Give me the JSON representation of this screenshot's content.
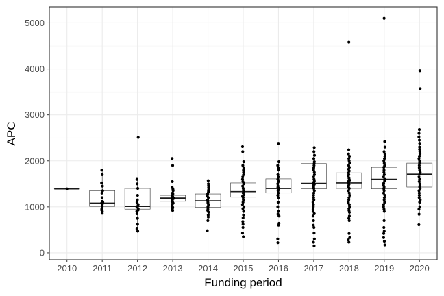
{
  "chart_data": {
    "type": "box",
    "xlabel": "Funding period",
    "ylabel": "APC",
    "ylim": [
      -150,
      5350
    ],
    "yticks": [
      0,
      1000,
      2000,
      3000,
      4000,
      5000
    ],
    "grid": true,
    "categories": [
      "2010",
      "2011",
      "2012",
      "2013",
      "2014",
      "2015",
      "2016",
      "2017",
      "2018",
      "2019",
      "2020"
    ],
    "boxes": [
      {
        "q1": 1390,
        "median": 1390,
        "q3": 1390,
        "whisker_low": 1390,
        "whisker_high": 1390
      },
      {
        "q1": 1010,
        "median": 1080,
        "q3": 1350,
        "whisker_low": 860,
        "whisker_high": 1800
      },
      {
        "q1": 950,
        "median": 1010,
        "q3": 1400,
        "whisker_low": 470,
        "whisker_high": 1600
      },
      {
        "q1": 1120,
        "median": 1190,
        "q3": 1250,
        "whisker_low": 920,
        "whisker_high": 1380
      },
      {
        "q1": 990,
        "median": 1130,
        "q3": 1280,
        "whisker_low": 700,
        "whisker_high": 1570
      },
      {
        "q1": 1210,
        "median": 1330,
        "q3": 1520,
        "whisker_low": 760,
        "whisker_high": 1980
      },
      {
        "q1": 1300,
        "median": 1400,
        "q3": 1610,
        "whisker_low": 840,
        "whisker_high": 1980
      },
      {
        "q1": 1390,
        "median": 1510,
        "q3": 1940,
        "whisker_low": 800,
        "whisker_high": 2290
      },
      {
        "q1": 1400,
        "median": 1520,
        "q3": 1740,
        "whisker_low": 880,
        "whisker_high": 2240
      },
      {
        "q1": 1390,
        "median": 1600,
        "q3": 1860,
        "whisker_low": 700,
        "whisker_high": 2420
      },
      {
        "q1": 1430,
        "median": 1710,
        "q3": 1950,
        "whisker_low": 840,
        "whisker_high": 2680
      }
    ],
    "points": [
      [
        1390
      ],
      [
        860,
        900,
        930,
        960,
        1000,
        1050,
        1080,
        1100,
        1120,
        1200,
        1300,
        1350,
        1450,
        1520,
        1700,
        1800
      ],
      [
        470,
        520,
        620,
        750,
        850,
        900,
        930,
        960,
        1000,
        1010,
        1050,
        1100,
        1150,
        1250,
        1400,
        1500,
        1600,
        2510
      ],
      [
        920,
        950,
        980,
        1000,
        1050,
        1080,
        1100,
        1120,
        1150,
        1180,
        1190,
        1200,
        1220,
        1250,
        1280,
        1300,
        1350,
        1380,
        1420,
        1550,
        1900,
        2050
      ],
      [
        480,
        700,
        780,
        820,
        880,
        920,
        950,
        990,
        1010,
        1050,
        1080,
        1100,
        1130,
        1150,
        1200,
        1230,
        1280,
        1320,
        1350,
        1380,
        1420,
        1460,
        1500,
        1570
      ],
      [
        350,
        430,
        550,
        620,
        680,
        760,
        820,
        900,
        960,
        1000,
        1050,
        1100,
        1150,
        1200,
        1230,
        1260,
        1300,
        1330,
        1360,
        1400,
        1450,
        1500,
        1520,
        1550,
        1600,
        1650,
        1700,
        1750,
        1800,
        1850,
        1900,
        1980,
        2200,
        2310
      ],
      [
        220,
        300,
        600,
        640,
        800,
        840,
        900,
        1000,
        1100,
        1200,
        1250,
        1300,
        1350,
        1380,
        1400,
        1420,
        1450,
        1500,
        1550,
        1600,
        1650,
        1700,
        1800,
        1850,
        1900,
        1980,
        2380
      ],
      [
        150,
        230,
        300,
        430,
        550,
        600,
        700,
        800,
        850,
        900,
        950,
        1000,
        1050,
        1100,
        1150,
        1200,
        1250,
        1300,
        1350,
        1400,
        1430,
        1460,
        1490,
        1510,
        1530,
        1560,
        1600,
        1650,
        1700,
        1750,
        1800,
        1850,
        1900,
        1940,
        1980,
        2050,
        2120,
        2200,
        2290
      ],
      [
        230,
        280,
        330,
        420,
        700,
        750,
        800,
        880,
        920,
        960,
        1000,
        1050,
        1100,
        1150,
        1200,
        1250,
        1300,
        1350,
        1400,
        1430,
        1460,
        1490,
        1520,
        1550,
        1580,
        1620,
        1660,
        1700,
        1740,
        1780,
        1820,
        1860,
        1900,
        1950,
        2000,
        2050,
        2100,
        2150,
        2240,
        4580
      ],
      [
        170,
        250,
        330,
        420,
        470,
        550,
        700,
        900,
        950,
        1000,
        1050,
        1100,
        1150,
        1200,
        1250,
        1300,
        1350,
        1390,
        1430,
        1470,
        1510,
        1560,
        1600,
        1650,
        1700,
        1750,
        1800,
        1860,
        1900,
        1950,
        2000,
        2050,
        2100,
        2150,
        2200,
        2300,
        2420,
        5100
      ],
      [
        610,
        840,
        950,
        1000,
        1100,
        1150,
        1200,
        1250,
        1300,
        1350,
        1400,
        1430,
        1460,
        1500,
        1550,
        1600,
        1650,
        1710,
        1750,
        1800,
        1850,
        1900,
        1950,
        2000,
        2050,
        2100,
        2150,
        2200,
        2250,
        2300,
        2380,
        2450,
        2520,
        2600,
        2680,
        3570,
        3960
      ]
    ]
  }
}
